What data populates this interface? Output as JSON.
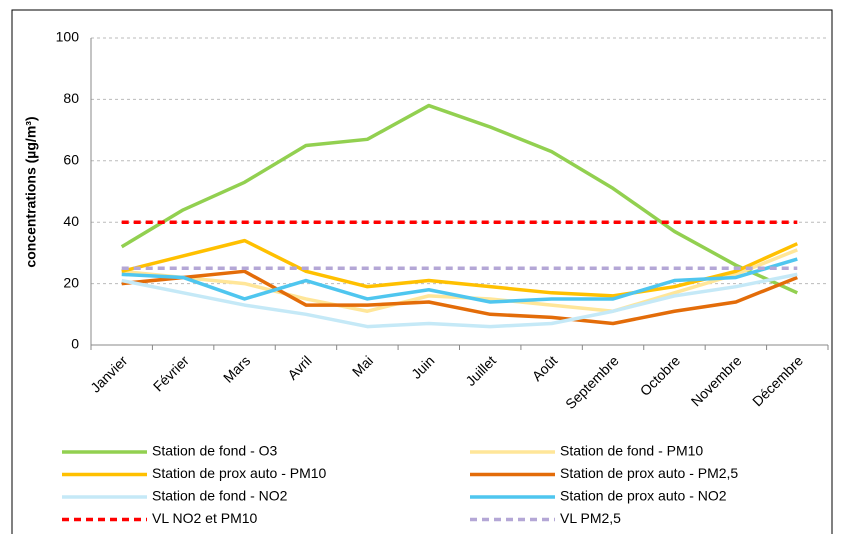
{
  "chart_data": {
    "type": "line",
    "y_label": "concentrations (µg/m³)",
    "categories": [
      "Janvier",
      "Février",
      "Mars",
      "Avril",
      "Mai",
      "Juin",
      "Juillet",
      "Août",
      "Septembre",
      "Octobre",
      "Novembre",
      "Décembre"
    ],
    "ylim": [
      0,
      100
    ],
    "yticks": [
      0,
      20,
      40,
      60,
      80,
      100
    ],
    "grid": true,
    "series": [
      {
        "name": "Station de fond - O3",
        "color": "#92d050",
        "values": [
          32,
          44,
          53,
          65,
          67,
          78,
          71,
          63,
          51,
          37,
          26,
          17
        ]
      },
      {
        "name": "Station de fond - PM10",
        "color": "#ffe699",
        "values": [
          24,
          22,
          20,
          15,
          11,
          16,
          15,
          13,
          11,
          17,
          23,
          31
        ]
      },
      {
        "name": "Station de prox auto - PM10",
        "color": "#ffc000",
        "values": [
          24,
          29,
          34,
          24,
          19,
          21,
          19,
          17,
          16,
          19,
          24,
          33
        ]
      },
      {
        "name": "Station de prox auto - PM2,5",
        "color": "#e36c09",
        "values": [
          20,
          22,
          24,
          13,
          13,
          14,
          10,
          9,
          7,
          11,
          14,
          22
        ]
      },
      {
        "name": "Station de fond - NO2",
        "color": "#c5e9f7",
        "values": [
          21,
          17,
          13,
          10,
          6,
          7,
          6,
          7,
          11,
          16,
          19,
          23
        ]
      },
      {
        "name": "Station de prox auto - NO2",
        "color": "#4fc6ef",
        "values": [
          23,
          22,
          15,
          21,
          15,
          18,
          14,
          15,
          15,
          21,
          22,
          28
        ]
      },
      {
        "name": "VL NO2 et PM10",
        "color": "#ff0000",
        "dashed": true,
        "values": [
          40,
          40,
          40,
          40,
          40,
          40,
          40,
          40,
          40,
          40,
          40,
          40
        ]
      },
      {
        "name": "VL PM2,5",
        "color": "#b4a7d6",
        "dashed": true,
        "values": [
          25,
          25,
          25,
          25,
          25,
          25,
          25,
          25,
          25,
          25,
          25,
          25
        ]
      }
    ]
  }
}
